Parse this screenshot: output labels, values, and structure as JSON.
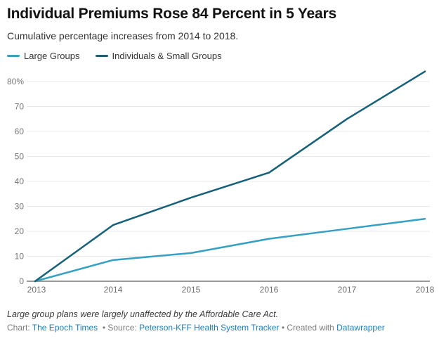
{
  "header": {
    "title": "Individual Premiums Rose 84 Percent in 5 Years",
    "subtitle": "Cumulative percentage increases from 2014 to 2018."
  },
  "legend": {
    "items": [
      {
        "label": "Large Groups",
        "color": "#34a0c4"
      },
      {
        "label": "Individuals & Small Groups",
        "color": "#15607a"
      }
    ]
  },
  "chart_data": {
    "type": "line",
    "x": [
      2013,
      2014,
      2015,
      2016,
      2017,
      2018
    ],
    "series": [
      {
        "name": "Large Groups",
        "color": "#34a0c4",
        "values": [
          0,
          8.5,
          11.3,
          17,
          21,
          25
        ]
      },
      {
        "name": "Individuals & Small Groups",
        "color": "#15607a",
        "values": [
          0,
          22.5,
          33.5,
          43.5,
          65,
          84
        ]
      }
    ],
    "title": "Individual Premiums Rose 84 Percent in 5 Years",
    "xlabel": "",
    "ylabel": "",
    "ylim": [
      0,
      84
    ],
    "yticks": [
      0,
      10,
      20,
      30,
      40,
      50,
      60,
      70,
      80
    ],
    "ytick_suffix_top": "%",
    "grid": true,
    "legend_position": "top",
    "colors": {
      "gridline": "#e8e8e8",
      "baseline": "#9a9a9a",
      "tick_text": "#6e6e6e"
    }
  },
  "footer": {
    "note": "Large group plans were largely unaffected by the Affordable Care Act.",
    "byline": [
      {
        "text": "Chart: ",
        "link": false
      },
      {
        "text": "The Epoch Times",
        "link": true
      },
      {
        "text": "  • Source: ",
        "link": false
      },
      {
        "text": "Peterson-KFF Health System Tracker",
        "link": true
      },
      {
        "text": " • Created with ",
        "link": false
      },
      {
        "text": "Datawrapper",
        "link": true
      }
    ]
  }
}
